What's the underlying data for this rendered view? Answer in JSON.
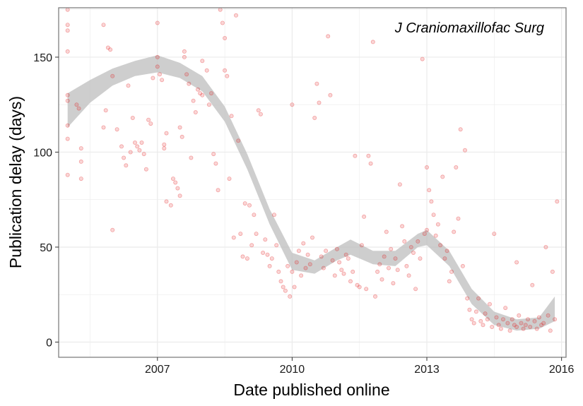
{
  "chart_data": {
    "type": "scatter",
    "annotation": "J Craniomaxillofac Surg",
    "xlabel": "Date published online",
    "ylabel": "Publication delay (days)",
    "xlim": [
      2004.8,
      2016.1
    ],
    "ylim": [
      -8,
      176
    ],
    "x_ticks": [
      2007,
      2010,
      2013,
      2016
    ],
    "x_tick_labels": [
      "2007",
      "2010",
      "2013",
      "2016"
    ],
    "y_ticks": [
      0,
      50,
      100,
      150
    ],
    "y_tick_labels": [
      "0",
      "50",
      "100",
      "150"
    ],
    "grid": true,
    "legend": "none",
    "colors": {
      "points": "#e31a1c",
      "ribbon": "#bdbdbd",
      "grid": "#ebebeb",
      "frame": "#7f7f7f"
    },
    "smooth_band": [
      {
        "x": 2005.0,
        "lo": 113,
        "hi": 131
      },
      {
        "x": 2005.5,
        "lo": 126,
        "hi": 138
      },
      {
        "x": 2006.0,
        "lo": 135,
        "hi": 144
      },
      {
        "x": 2006.5,
        "lo": 140,
        "hi": 148
      },
      {
        "x": 2007.0,
        "lo": 142,
        "hi": 151
      },
      {
        "x": 2007.5,
        "lo": 139,
        "hi": 147
      },
      {
        "x": 2008.0,
        "lo": 132,
        "hi": 140
      },
      {
        "x": 2008.5,
        "lo": 116,
        "hi": 124
      },
      {
        "x": 2009.0,
        "lo": 91,
        "hi": 99
      },
      {
        "x": 2009.5,
        "lo": 62,
        "hi": 70
      },
      {
        "x": 2010.0,
        "lo": 38,
        "hi": 47
      },
      {
        "x": 2010.5,
        "lo": 36,
        "hi": 43
      },
      {
        "x": 2011.0,
        "lo": 43,
        "hi": 50
      },
      {
        "x": 2011.3,
        "lo": 46,
        "hi": 54
      },
      {
        "x": 2011.8,
        "lo": 41,
        "hi": 48
      },
      {
        "x": 2012.3,
        "lo": 40,
        "hi": 48
      },
      {
        "x": 2012.8,
        "lo": 50,
        "hi": 57
      },
      {
        "x": 2013.0,
        "lo": 51,
        "hi": 59
      },
      {
        "x": 2013.5,
        "lo": 40,
        "hi": 48
      },
      {
        "x": 2014.0,
        "lo": 20,
        "hi": 28
      },
      {
        "x": 2014.5,
        "lo": 9,
        "hi": 16
      },
      {
        "x": 2015.0,
        "lo": 6,
        "hi": 12
      },
      {
        "x": 2015.5,
        "lo": 7,
        "hi": 13
      },
      {
        "x": 2015.85,
        "lo": 11,
        "hi": 24
      }
    ],
    "points": [
      [
        2005.0,
        175
      ],
      [
        2005.0,
        167
      ],
      [
        2005.0,
        164
      ],
      [
        2005.0,
        153
      ],
      [
        2005.0,
        130
      ],
      [
        2005.0,
        127
      ],
      [
        2005.0,
        114
      ],
      [
        2005.0,
        107
      ],
      [
        2005.0,
        88
      ],
      [
        2005.2,
        125
      ],
      [
        2005.25,
        123
      ],
      [
        2005.3,
        102
      ],
      [
        2005.3,
        95
      ],
      [
        2005.3,
        86
      ],
      [
        2005.8,
        167
      ],
      [
        2005.9,
        155
      ],
      [
        2005.95,
        154
      ],
      [
        2005.85,
        122
      ],
      [
        2005.8,
        113
      ],
      [
        2006.0,
        140
      ],
      [
        2006.0,
        59
      ],
      [
        2006.1,
        112
      ],
      [
        2006.2,
        103
      ],
      [
        2006.25,
        97
      ],
      [
        2006.3,
        93
      ],
      [
        2006.35,
        135
      ],
      [
        2006.4,
        100
      ],
      [
        2006.45,
        118
      ],
      [
        2006.5,
        105
      ],
      [
        2006.55,
        103
      ],
      [
        2006.6,
        101
      ],
      [
        2006.65,
        105
      ],
      [
        2006.7,
        99
      ],
      [
        2006.75,
        91
      ],
      [
        2006.8,
        117
      ],
      [
        2006.85,
        115
      ],
      [
        2006.9,
        139
      ],
      [
        2007.0,
        168
      ],
      [
        2007.0,
        150
      ],
      [
        2007.0,
        145
      ],
      [
        2007.05,
        141
      ],
      [
        2007.1,
        138
      ],
      [
        2007.15,
        104
      ],
      [
        2007.15,
        102
      ],
      [
        2007.2,
        110
      ],
      [
        2007.2,
        74
      ],
      [
        2007.3,
        72
      ],
      [
        2007.35,
        86
      ],
      [
        2007.4,
        84
      ],
      [
        2007.45,
        81
      ],
      [
        2007.5,
        77
      ],
      [
        2007.5,
        113
      ],
      [
        2007.55,
        108
      ],
      [
        2007.6,
        153
      ],
      [
        2007.6,
        150
      ],
      [
        2007.65,
        141
      ],
      [
        2007.7,
        136
      ],
      [
        2007.75,
        97
      ],
      [
        2007.8,
        127
      ],
      [
        2007.85,
        121
      ],
      [
        2007.9,
        133
      ],
      [
        2007.95,
        131
      ],
      [
        2008.0,
        148
      ],
      [
        2008.0,
        130
      ],
      [
        2008.1,
        143
      ],
      [
        2008.15,
        125
      ],
      [
        2008.2,
        131
      ],
      [
        2008.25,
        99
      ],
      [
        2008.3,
        94
      ],
      [
        2008.35,
        80
      ],
      [
        2008.4,
        175
      ],
      [
        2008.45,
        168
      ],
      [
        2008.5,
        160
      ],
      [
        2008.5,
        143
      ],
      [
        2008.55,
        140
      ],
      [
        2008.6,
        86
      ],
      [
        2008.65,
        119
      ],
      [
        2008.7,
        55
      ],
      [
        2008.75,
        172
      ],
      [
        2008.8,
        106
      ],
      [
        2008.85,
        57
      ],
      [
        2008.9,
        45
      ],
      [
        2008.95,
        73
      ],
      [
        2009.0,
        44
      ],
      [
        2009.05,
        72
      ],
      [
        2009.1,
        51
      ],
      [
        2009.15,
        67
      ],
      [
        2009.2,
        57
      ],
      [
        2009.25,
        122
      ],
      [
        2009.3,
        120
      ],
      [
        2009.35,
        47
      ],
      [
        2009.4,
        54
      ],
      [
        2009.45,
        46
      ],
      [
        2009.5,
        40
      ],
      [
        2009.55,
        44
      ],
      [
        2009.6,
        67
      ],
      [
        2009.65,
        51
      ],
      [
        2009.7,
        37
      ],
      [
        2009.75,
        32
      ],
      [
        2009.8,
        29
      ],
      [
        2009.85,
        27
      ],
      [
        2009.9,
        40
      ],
      [
        2009.95,
        24
      ],
      [
        2010.0,
        125
      ],
      [
        2010.0,
        37
      ],
      [
        2010.05,
        29
      ],
      [
        2010.1,
        42
      ],
      [
        2010.15,
        48
      ],
      [
        2010.2,
        35
      ],
      [
        2010.25,
        52
      ],
      [
        2010.3,
        39
      ],
      [
        2010.35,
        46
      ],
      [
        2010.4,
        41
      ],
      [
        2010.45,
        55
      ],
      [
        2010.5,
        118
      ],
      [
        2010.55,
        136
      ],
      [
        2010.6,
        126
      ],
      [
        2010.65,
        45
      ],
      [
        2010.7,
        39
      ],
      [
        2010.75,
        48
      ],
      [
        2010.8,
        161
      ],
      [
        2010.85,
        130
      ],
      [
        2010.9,
        43
      ],
      [
        2010.95,
        35
      ],
      [
        2011.0,
        49
      ],
      [
        2011.05,
        42
      ],
      [
        2011.1,
        38
      ],
      [
        2011.15,
        36
      ],
      [
        2011.2,
        46
      ],
      [
        2011.25,
        44
      ],
      [
        2011.3,
        32
      ],
      [
        2011.35,
        37
      ],
      [
        2011.4,
        98
      ],
      [
        2011.45,
        30
      ],
      [
        2011.5,
        29
      ],
      [
        2011.55,
        51
      ],
      [
        2011.6,
        66
      ],
      [
        2011.65,
        28
      ],
      [
        2011.7,
        98
      ],
      [
        2011.75,
        94
      ],
      [
        2011.8,
        158
      ],
      [
        2011.85,
        24
      ],
      [
        2011.9,
        37
      ],
      [
        2011.95,
        41
      ],
      [
        2012.0,
        33
      ],
      [
        2012.05,
        45
      ],
      [
        2012.1,
        58
      ],
      [
        2012.15,
        39
      ],
      [
        2012.2,
        49
      ],
      [
        2012.25,
        31
      ],
      [
        2012.3,
        44
      ],
      [
        2012.35,
        38
      ],
      [
        2012.4,
        83
      ],
      [
        2012.45,
        61
      ],
      [
        2012.5,
        53
      ],
      [
        2012.55,
        40
      ],
      [
        2012.6,
        35
      ],
      [
        2012.65,
        50
      ],
      [
        2012.7,
        47
      ],
      [
        2012.75,
        28
      ],
      [
        2012.8,
        53
      ],
      [
        2012.85,
        44
      ],
      [
        2012.9,
        149
      ],
      [
        2012.95,
        57
      ],
      [
        2013.0,
        92
      ],
      [
        2013.0,
        59
      ],
      [
        2013.05,
        80
      ],
      [
        2013.1,
        74
      ],
      [
        2013.15,
        67
      ],
      [
        2013.2,
        56
      ],
      [
        2013.25,
        62
      ],
      [
        2013.3,
        51
      ],
      [
        2013.35,
        87
      ],
      [
        2013.4,
        44
      ],
      [
        2013.45,
        48
      ],
      [
        2013.5,
        32
      ],
      [
        2013.55,
        37
      ],
      [
        2013.6,
        58
      ],
      [
        2013.65,
        92
      ],
      [
        2013.7,
        65
      ],
      [
        2013.75,
        112
      ],
      [
        2013.8,
        40
      ],
      [
        2013.85,
        101
      ],
      [
        2013.9,
        23
      ],
      [
        2013.95,
        17
      ],
      [
        2014.0,
        12
      ],
      [
        2014.05,
        10
      ],
      [
        2014.1,
        16
      ],
      [
        2014.15,
        23
      ],
      [
        2014.2,
        11
      ],
      [
        2014.25,
        9
      ],
      [
        2014.3,
        15
      ],
      [
        2014.35,
        12
      ],
      [
        2014.4,
        20
      ],
      [
        2014.45,
        8
      ],
      [
        2014.5,
        57
      ],
      [
        2014.55,
        13
      ],
      [
        2014.6,
        9
      ],
      [
        2014.65,
        7
      ],
      [
        2014.7,
        12
      ],
      [
        2014.75,
        18
      ],
      [
        2014.8,
        10
      ],
      [
        2014.85,
        6
      ],
      [
        2014.9,
        12
      ],
      [
        2014.95,
        9
      ],
      [
        2015.0,
        8
      ],
      [
        2015.0,
        42
      ],
      [
        2015.05,
        14
      ],
      [
        2015.1,
        10
      ],
      [
        2015.15,
        7
      ],
      [
        2015.2,
        9
      ],
      [
        2015.25,
        12
      ],
      [
        2015.3,
        8
      ],
      [
        2015.35,
        30
      ],
      [
        2015.4,
        11
      ],
      [
        2015.45,
        7
      ],
      [
        2015.5,
        13
      ],
      [
        2015.55,
        9
      ],
      [
        2015.6,
        10
      ],
      [
        2015.65,
        50
      ],
      [
        2015.7,
        14
      ],
      [
        2015.75,
        6
      ],
      [
        2015.8,
        37
      ],
      [
        2015.85,
        12
      ],
      [
        2015.9,
        74
      ]
    ]
  }
}
